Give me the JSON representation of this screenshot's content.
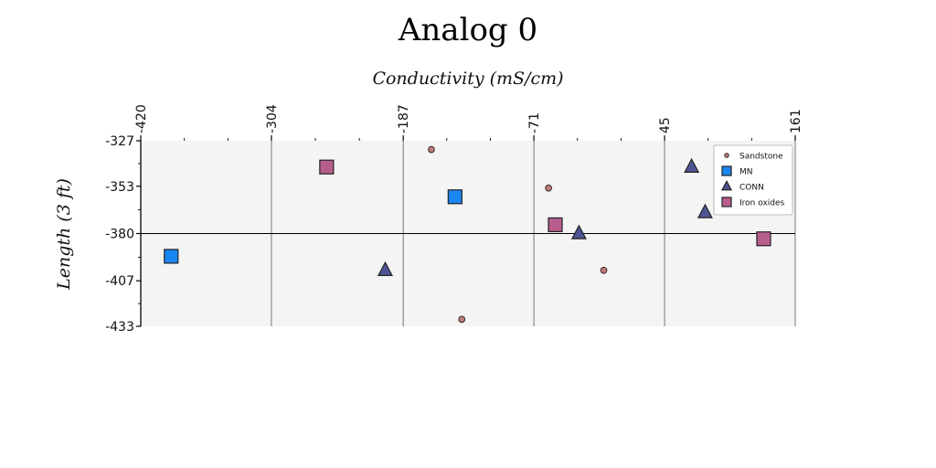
{
  "chart_data": {
    "type": "scatter",
    "title": "Analog 0",
    "xlabel": "Conductivity (mS/cm)",
    "ylabel": "Length (3 ft)",
    "xlim": [
      -420,
      161
    ],
    "ylim": [
      -433,
      -327
    ],
    "xticks": [
      "-420",
      "-304",
      "-187",
      "-71",
      "45",
      "161"
    ],
    "xtick_values": [
      -420,
      -304,
      -187,
      -71,
      45,
      161
    ],
    "yticks": [
      "-327",
      "-353",
      "-380",
      "-407",
      "-433"
    ],
    "ytick_values": [
      -327,
      -353,
      -380,
      -407,
      -433
    ],
    "hline": -380,
    "grid": "vertical lines at x ticks",
    "legend_position": "top-right",
    "colors": {
      "background": "#f4f4f4",
      "Sandstone": "#c07a7a",
      "MN": "#1a86f2",
      "CONN": "#4f5594",
      "Iron oxides": "#b85e8e"
    },
    "series": [
      {
        "name": "Sandstone",
        "marker": "circle",
        "points": [
          [
            -162,
            -332
          ],
          [
            -135,
            -429
          ],
          [
            -9,
            -401
          ],
          [
            -58,
            -354
          ]
        ]
      },
      {
        "name": "MN",
        "marker": "square",
        "points": [
          [
            -393,
            -393
          ],
          [
            -141,
            -359
          ]
        ]
      },
      {
        "name": "CONN",
        "marker": "triangle",
        "points": [
          [
            -203,
            -401
          ],
          [
            -31,
            -380
          ],
          [
            69,
            -342
          ],
          [
            81,
            -368
          ]
        ]
      },
      {
        "name": "Iron oxides",
        "marker": "square",
        "points": [
          [
            -255,
            -342
          ],
          [
            -52,
            -375
          ],
          [
            133,
            -383
          ]
        ]
      }
    ]
  }
}
